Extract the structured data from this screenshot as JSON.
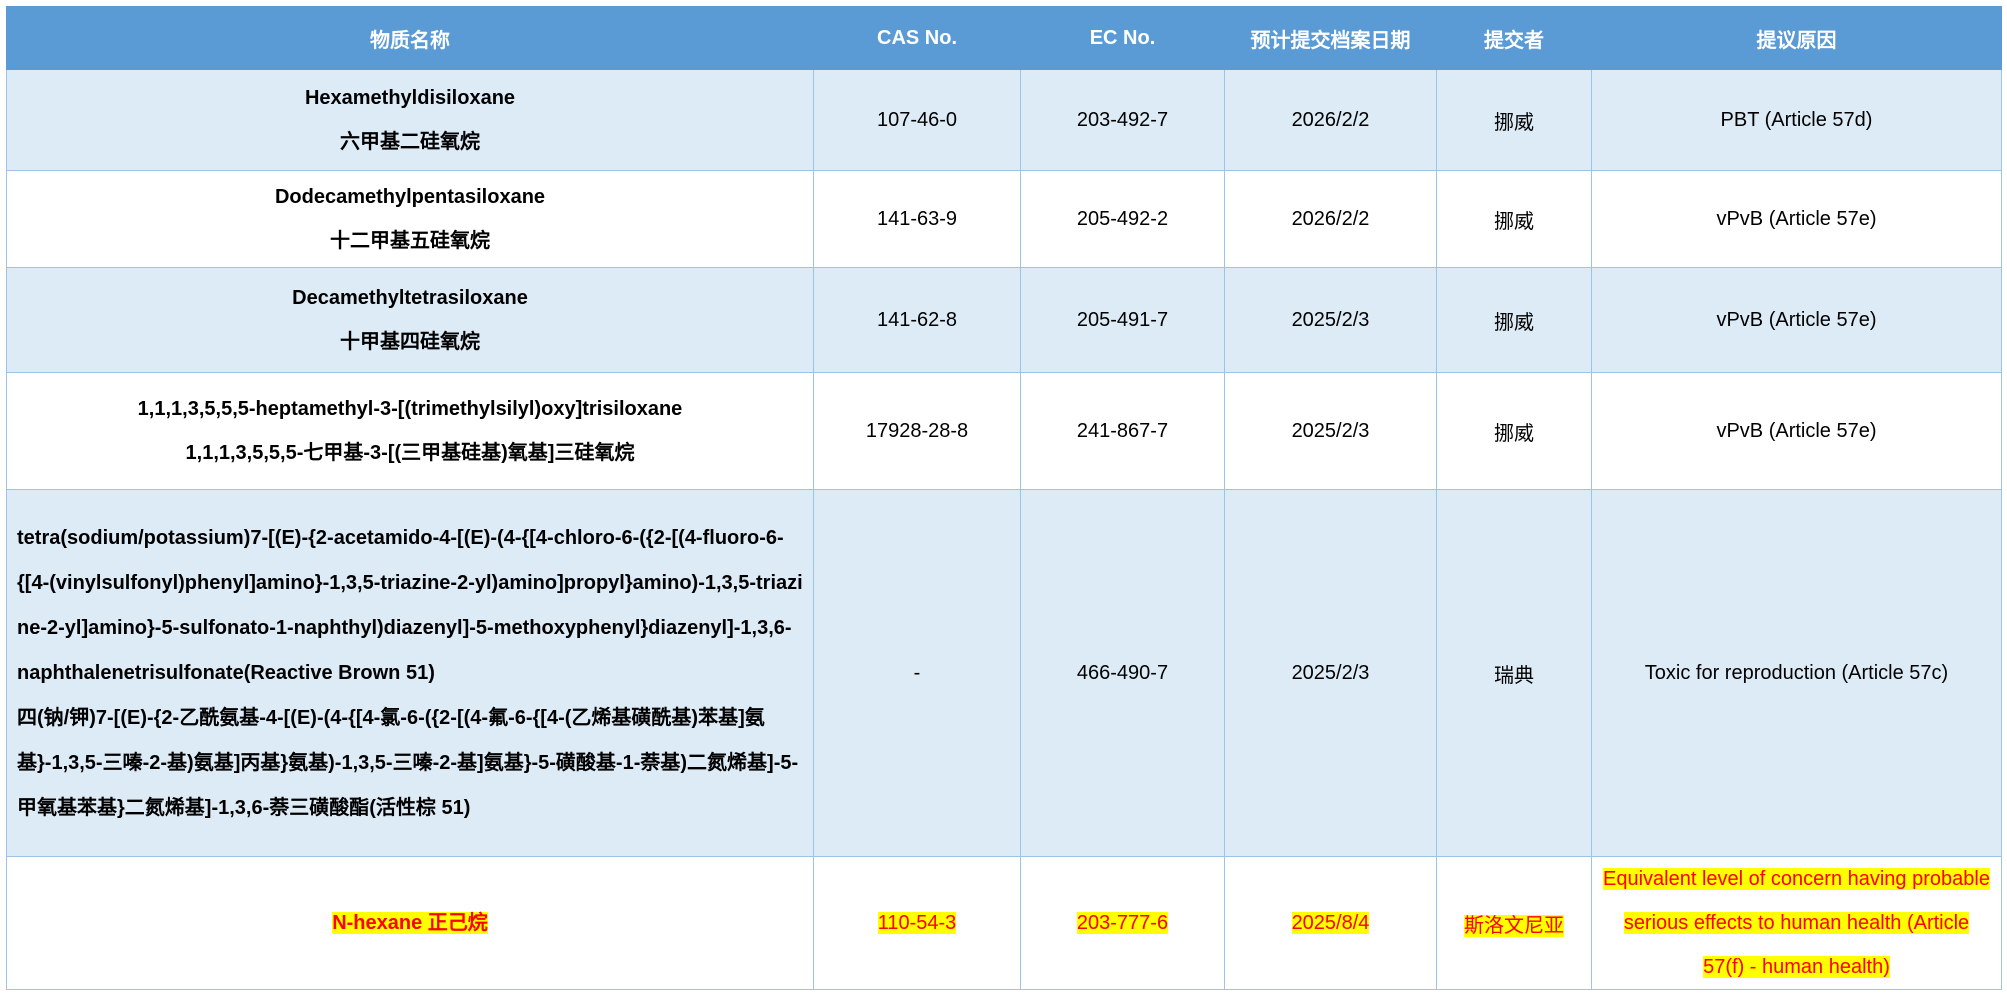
{
  "columns": [
    "物质名称",
    "CAS No.",
    "EC No.",
    "预计提交档案日期",
    "提交者",
    "提议原因"
  ],
  "rows": [
    {
      "name_en": "Hexamethyldisiloxane",
      "name_zh": "六甲基二硅氧烷",
      "cas": "107-46-0",
      "ec": "203-492-7",
      "date": "2026/2/2",
      "submitter": "挪威",
      "reason": "PBT (Article 57d)"
    },
    {
      "name_en": "Dodecamethylpentasiloxane",
      "name_zh": "十二甲基五硅氧烷",
      "cas": "141-63-9",
      "ec": "205-492-2",
      "date": "2026/2/2",
      "submitter": "挪威",
      "reason": "vPvB (Article 57e)"
    },
    {
      "name_en": "Decamethyltetrasiloxane",
      "name_zh": "十甲基四硅氧烷",
      "cas": "141-62-8",
      "ec": "205-491-7",
      "date": "2025/2/3",
      "submitter": "挪威",
      "reason": "vPvB (Article 57e)"
    },
    {
      "name_en": "1,1,1,3,5,5,5-heptamethyl-3-[(trimethylsilyl)oxy]trisiloxane",
      "name_zh": "1,1,1,3,5,5,5-七甲基-3-[(三甲基硅基)氧基]三硅氧烷",
      "cas": "17928-28-8",
      "ec": "241-867-7",
      "date": "2025/2/3",
      "submitter": "挪威",
      "reason": "vPvB (Article 57e)"
    },
    {
      "name_en": "tetra(sodium/potassium)7-[(E)-{2-acetamido-4-[(E)-(4-{[4-chloro-6-({2-[(4-fluoro-6-{[4-(vinylsulfonyl)phenyl]amino}-1,3,5-triazine-2-yl)amino]propyl}amino)-1,3,5-triazine-2-yl]amino}-5-sulfonato-1-naphthyl)diazenyl]-5-methoxyphenyl}diazenyl]-1,3,6-naphthalenetrisulfonate(Reactive Brown 51)",
      "name_zh": "四(钠/钾)7-[(E)-{2-乙酰氨基-4-[(E)-(4-{[4-氯-6-({2-[(4-氟-6-{[4-(乙烯基磺酰基)苯基]氨基}-1,3,5-三嗪-2-基)氨基]丙基}氨基)-1,3,5-三嗪-2-基]氨基}-5-磺酸基-1-萘基)二氮烯基]-5-甲氧基苯基}二氮烯基]-1,3,6-萘三磺酸酯(活性棕 51)",
      "cas": "-",
      "ec": "466-490-7",
      "date": "2025/2/3",
      "submitter": "瑞典",
      "reason": "Toxic for reproduction (Article 57c)"
    },
    {
      "name": "N-hexane 正己烷",
      "cas": "110-54-3",
      "ec": "203-777-6",
      "date": "2025/8/4",
      "submitter": "斯洛文尼亚",
      "reason": "Equivalent level of concern having probable serious effects to human health (Article 57(f) - human health)"
    }
  ],
  "colors": {
    "header_bg": "#5b9bd5",
    "alt_row_bg": "#ddebf7",
    "border": "#9dc3e6",
    "highlight_bg": "#ffff00",
    "highlight_text": "#ff0000"
  }
}
